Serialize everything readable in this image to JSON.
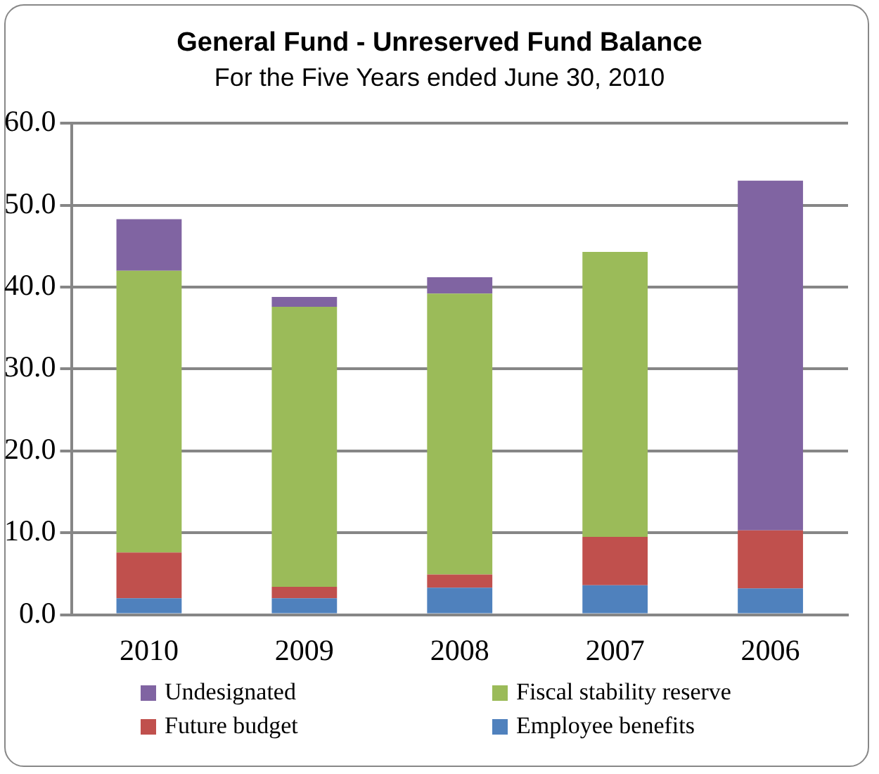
{
  "chart_data": {
    "type": "bar",
    "title": "General Fund - Unreserved Fund Balance",
    "subtitle": "For the Five Years ended June 30, 2010",
    "categories": [
      "2010",
      "2009",
      "2008",
      "2007",
      "2006"
    ],
    "stacked": true,
    "series": [
      {
        "name": "Employee benefits",
        "color": "#4f81bd",
        "values": [
          2.0,
          2.0,
          3.3,
          3.6,
          3.2
        ]
      },
      {
        "name": "Future budget",
        "color": "#c0504d",
        "values": [
          5.6,
          1.4,
          1.6,
          5.9,
          7.1
        ]
      },
      {
        "name": "Fiscal stability reserve",
        "color": "#9bbb59",
        "values": [
          34.4,
          34.2,
          34.3,
          34.8,
          0
        ]
      },
      {
        "name": "Undesignated",
        "color": "#8064a2",
        "values": [
          6.3,
          1.2,
          2.0,
          0,
          42.7
        ]
      }
    ],
    "ylim": [
      0,
      60
    ],
    "yticks": [
      {
        "value": 0,
        "label": "0.0"
      },
      {
        "value": 10,
        "label": "10.0"
      },
      {
        "value": 20,
        "label": "20.0"
      },
      {
        "value": 30,
        "label": "30.0"
      },
      {
        "value": 40,
        "label": "40.0"
      },
      {
        "value": 50,
        "label": "50.0"
      },
      {
        "value": 60,
        "label": "60.0"
      }
    ],
    "grid": "y",
    "legend": "bottom"
  }
}
